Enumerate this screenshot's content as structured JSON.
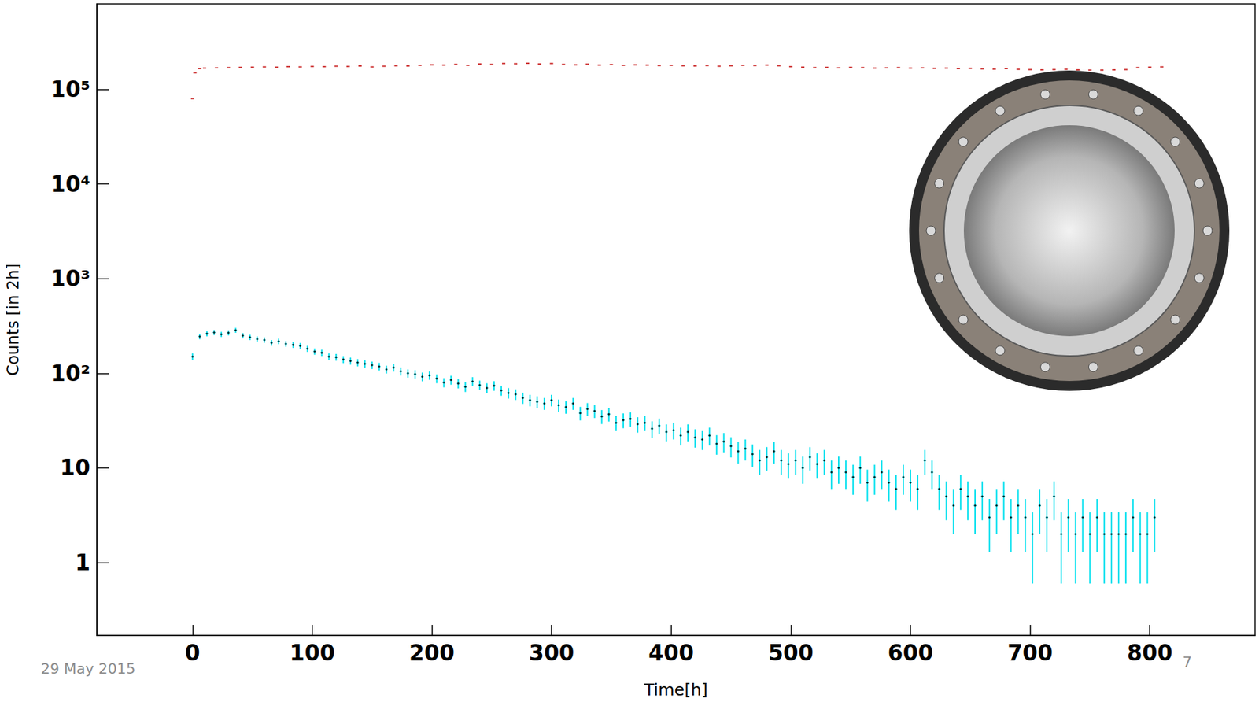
{
  "chart_data": {
    "type": "scatter",
    "xlabel": "Time[h]",
    "ylabel": "Counts [in 2h]",
    "log": "y",
    "grid": false,
    "xlim": [
      -80,
      888
    ],
    "xticks": [
      0,
      100,
      200,
      300,
      400,
      500,
      600,
      700,
      800
    ],
    "ylim": [
      0.17,
      800000
    ],
    "yticks": [
      1,
      10,
      {
        "value": 100,
        "label": "10²"
      },
      {
        "value": 1000,
        "label": "10³"
      },
      {
        "value": 10000,
        "label": "10⁴"
      },
      {
        "value": 100000,
        "label": "10⁵"
      }
    ],
    "annotations": [
      "29 May 2015",
      "7"
    ],
    "series": [
      {
        "color": "#c00000",
        "marker": "dash",
        "x": [
          0,
          2,
          6,
          10,
          20,
          30,
          40,
          50,
          60,
          70,
          80,
          90,
          100,
          110,
          120,
          130,
          140,
          150,
          160,
          170,
          180,
          190,
          200,
          210,
          220,
          230,
          240,
          250,
          260,
          270,
          280,
          290,
          300,
          310,
          320,
          330,
          340,
          350,
          360,
          370,
          380,
          390,
          400,
          410,
          420,
          430,
          440,
          450,
          460,
          470,
          480,
          490,
          500,
          510,
          520,
          530,
          540,
          550,
          560,
          570,
          580,
          590,
          600,
          610,
          620,
          630,
          640,
          650,
          660,
          670,
          680,
          690,
          700,
          710,
          720,
          730,
          740,
          750,
          760,
          770,
          780,
          790,
          800,
          810
        ],
        "values": [
          80000,
          150000,
          166000,
          168000,
          169000,
          170000,
          171000,
          172000,
          173000,
          172000,
          174000,
          173000,
          175000,
          174000,
          176000,
          175000,
          177000,
          173000,
          176000,
          178000,
          177000,
          180000,
          182000,
          181000,
          184000,
          180000,
          186000,
          184000,
          188000,
          187000,
          189000,
          186000,
          188000,
          184000,
          182000,
          185000,
          181000,
          183000,
          180000,
          182000,
          181000,
          179000,
          180000,
          178000,
          177000,
          179000,
          176000,
          178000,
          180000,
          179000,
          181000,
          178000,
          174000,
          172000,
          170000,
          171000,
          169000,
          171000,
          170000,
          168000,
          169000,
          170000,
          168000,
          169000,
          167000,
          168000,
          166000,
          167000,
          165000,
          164000,
          166000,
          163000,
          162000,
          161000,
          162000,
          163000,
          161000,
          160000,
          160000,
          161000,
          162000,
          170000,
          172000,
          173000
        ]
      },
      {
        "color": "#00e0ee",
        "marker": "point",
        "x": [
          0,
          6,
          12,
          18,
          24,
          30,
          36,
          42,
          48,
          54,
          60,
          66,
          72,
          78,
          84,
          90,
          96,
          102,
          108,
          114,
          120,
          126,
          132,
          138,
          144,
          150,
          156,
          162,
          168,
          174,
          180,
          186,
          192,
          198,
          204,
          210,
          216,
          222,
          228,
          234,
          240,
          246,
          252,
          258,
          264,
          270,
          276,
          282,
          288,
          294,
          300,
          306,
          312,
          318,
          324,
          330,
          336,
          342,
          348,
          354,
          360,
          366,
          372,
          378,
          384,
          390,
          396,
          402,
          408,
          414,
          420,
          426,
          432,
          438,
          444,
          450,
          456,
          462,
          468,
          474,
          480,
          486,
          492,
          498,
          504,
          510,
          516,
          522,
          528,
          534,
          540,
          546,
          552,
          558,
          564,
          570,
          576,
          582,
          588,
          594,
          600,
          606,
          612,
          618,
          624,
          630,
          636,
          642,
          648,
          654,
          660,
          666,
          672,
          678,
          684,
          690,
          696,
          702,
          708,
          714,
          720,
          726,
          732,
          738,
          744,
          750,
          756,
          762,
          768,
          774,
          780,
          786,
          792,
          798,
          804
        ],
        "values": [
          150,
          245,
          262,
          270,
          258,
          268,
          285,
          250,
          240,
          230,
          225,
          210,
          218,
          205,
          200,
          195,
          182,
          170,
          165,
          150,
          148,
          140,
          135,
          130,
          126,
          122,
          118,
          110,
          115,
          105,
          100,
          98,
          92,
          95,
          88,
          80,
          85,
          78,
          72,
          82,
          75,
          70,
          74,
          66,
          62,
          60,
          55,
          52,
          50,
          48,
          52,
          46,
          44,
          48,
          38,
          42,
          40,
          35,
          37,
          30,
          32,
          33,
          29,
          30,
          26,
          28,
          24,
          25,
          22,
          24,
          21,
          20,
          22,
          18,
          19,
          17,
          15,
          16,
          14,
          12,
          13,
          15,
          12,
          11,
          12,
          10,
          13,
          11,
          12,
          9,
          10,
          9,
          8,
          10,
          7,
          8,
          9,
          7,
          6,
          8,
          7,
          6,
          12,
          9,
          6,
          5,
          4,
          6,
          5,
          4,
          5,
          3,
          4,
          5,
          3,
          4,
          3,
          2,
          4,
          3,
          5,
          2,
          3,
          2,
          3,
          2,
          3,
          2,
          2,
          2,
          2,
          3,
          2,
          2,
          3
        ],
        "errors": [
          12.2,
          15.7,
          16.2,
          16.4,
          16.1,
          16.4,
          16.9,
          15.8,
          15.5,
          15.2,
          15,
          14.5,
          14.8,
          14.3,
          14.1,
          14,
          13.5,
          13,
          12.8,
          12.2,
          12.2,
          11.8,
          11.6,
          11.4,
          11.2,
          11,
          10.9,
          10.5,
          10.7,
          10.2,
          10,
          9.9,
          9.6,
          9.7,
          9.4,
          8.9,
          9.2,
          8.8,
          8.5,
          9.1,
          8.7,
          8.4,
          8.6,
          8.1,
          7.9,
          7.7,
          7.4,
          7.2,
          7.1,
          6.9,
          7.2,
          6.8,
          6.6,
          6.9,
          6.2,
          6.5,
          6.3,
          5.9,
          6.1,
          5.5,
          5.7,
          5.7,
          5.4,
          5.5,
          5.1,
          5.3,
          4.9,
          5,
          4.7,
          4.9,
          4.6,
          4.5,
          4.7,
          4.2,
          4.4,
          4.1,
          3.9,
          4,
          3.7,
          3.5,
          3.6,
          3.9,
          3.5,
          3.3,
          3.5,
          3.2,
          3.6,
          3.3,
          3.5,
          3,
          3.2,
          3,
          2.8,
          3.2,
          2.6,
          2.8,
          3,
          2.6,
          2.4,
          2.8,
          2.6,
          2.4,
          3.5,
          3,
          2.4,
          2.2,
          2,
          2.4,
          2.2,
          2,
          2.2,
          1.7,
          2,
          2.2,
          1.7,
          2,
          1.7,
          1.4,
          2,
          1.7,
          2.2,
          1.4,
          1.7,
          1.4,
          1.7,
          1.4,
          1.7,
          1.4,
          1.4,
          1.4,
          1.4,
          1.7,
          1.4,
          1.4,
          1.7
        ]
      }
    ]
  }
}
